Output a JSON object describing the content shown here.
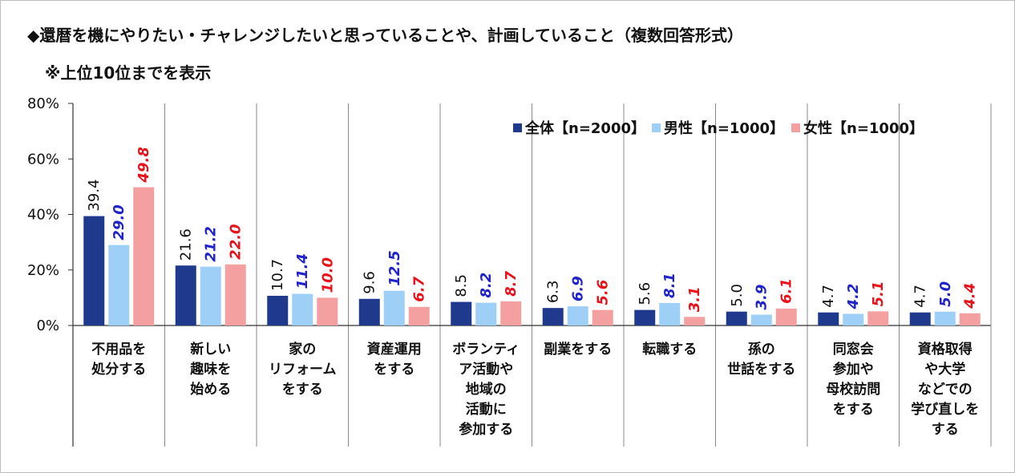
{
  "title": "◆還暦を機にやりたい・チャレンジしたいと思っていることや、計画していること（複数回答形式）",
  "subtitle": "※上位10位までを表示",
  "chart_data": {
    "type": "bar",
    "ylim": [
      0,
      80
    ],
    "yticks": [
      "0%",
      "20%",
      "40%",
      "60%",
      "80%"
    ],
    "ytick_values": [
      0,
      20,
      40,
      60,
      80
    ],
    "grid": false,
    "legend_position": "top-right",
    "categories": [
      [
        "不用品を",
        "処分する"
      ],
      [
        "新しい",
        "趣味を",
        "始める"
      ],
      [
        "家の",
        "リフォーム",
        "をする"
      ],
      [
        "資産運用",
        "をする"
      ],
      [
        "ボランティ",
        "ア活動や",
        "地域の",
        "活動に",
        "参加する"
      ],
      [
        "副業をする"
      ],
      [
        "転職する"
      ],
      [
        "孫の",
        "世話をする"
      ],
      [
        "同窓会",
        "参加や",
        "母校訪問",
        "をする"
      ],
      [
        "資格取得",
        "や大学",
        "などでの",
        "学び直しを",
        "する"
      ]
    ],
    "series": [
      {
        "name": "全体【n=2000】",
        "color": "#1f3a8c",
        "label_color": "#111111",
        "label_italic": false,
        "values": [
          39.4,
          21.6,
          10.7,
          9.6,
          8.5,
          6.3,
          5.6,
          5.0,
          4.7,
          4.7
        ]
      },
      {
        "name": "男性【n=1000】",
        "color": "#9ecff7",
        "label_color": "#1f23c8",
        "label_italic": true,
        "values": [
          29.0,
          21.2,
          11.4,
          12.5,
          8.2,
          6.9,
          8.1,
          3.9,
          4.2,
          5.0
        ]
      },
      {
        "name": "女性【n=1000】",
        "color": "#f4a0a0",
        "label_color": "#e8101a",
        "label_italic": true,
        "values": [
          49.8,
          22.0,
          10.0,
          6.7,
          8.7,
          5.6,
          3.1,
          6.1,
          5.1,
          4.4
        ]
      }
    ]
  }
}
